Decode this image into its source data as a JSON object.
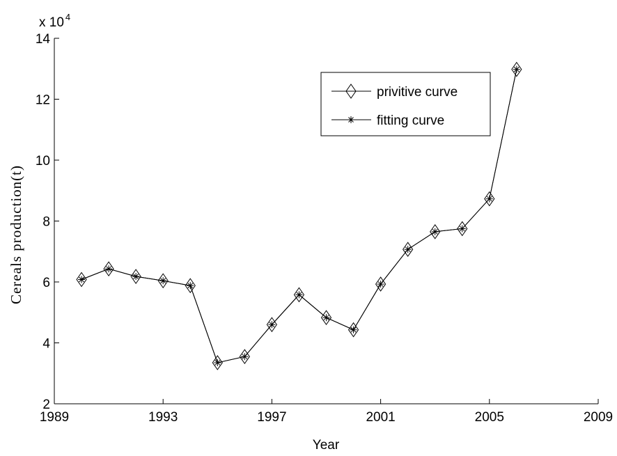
{
  "chart_data": {
    "type": "line",
    "xlabel": "Year",
    "ylabel": "Cereals production(t)",
    "xlim": [
      1989,
      2009
    ],
    "ylim": [
      2,
      14
    ],
    "y_multiplier": {
      "base": "x 10",
      "exponent": "4"
    },
    "x_ticks": [
      1989,
      1993,
      1997,
      2001,
      2005,
      2009
    ],
    "y_ticks": [
      2,
      4,
      6,
      8,
      10,
      12,
      14
    ],
    "x": [
      1990,
      1991,
      1992,
      1993,
      1994,
      1995,
      1996,
      1997,
      1998,
      1999,
      2000,
      2001,
      2002,
      2003,
      2004,
      2005,
      2006
    ],
    "series": [
      {
        "name": "privitive curve",
        "marker": "diamond",
        "color": "#000000",
        "values": [
          6.08,
          6.43,
          6.18,
          6.04,
          5.88,
          3.35,
          3.55,
          4.6,
          5.58,
          4.83,
          4.43,
          5.93,
          7.07,
          7.65,
          7.75,
          8.73,
          12.98
        ]
      },
      {
        "name": "fitting curve",
        "marker": "asterisk",
        "color": "#000000",
        "values": [
          6.08,
          6.43,
          6.18,
          6.04,
          5.88,
          3.35,
          3.55,
          4.6,
          5.58,
          4.83,
          4.43,
          5.93,
          7.07,
          7.65,
          7.75,
          8.73,
          12.98
        ]
      }
    ],
    "legend_position": "top-right",
    "grid": false
  }
}
